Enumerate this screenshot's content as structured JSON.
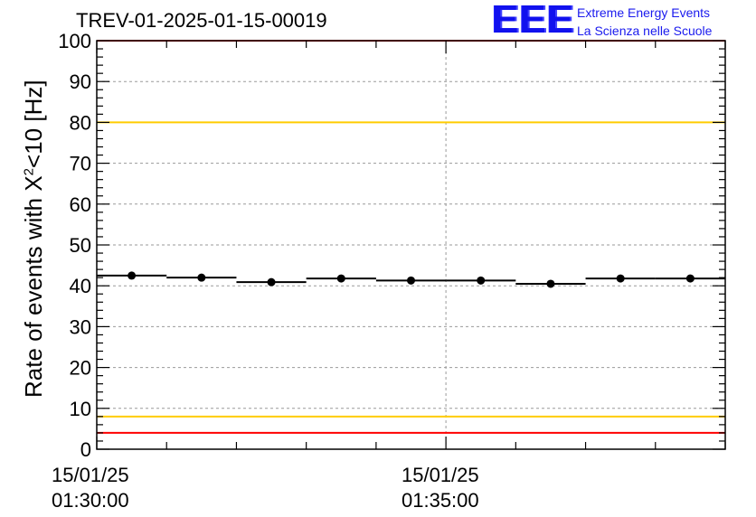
{
  "header": {
    "title": "TREV-01-2025-01-15-00019"
  },
  "logo": {
    "mark": "EEE",
    "line1": "Extreme Energy Events",
    "line2": "La Scienza nelle Scuole"
  },
  "chart_data": {
    "type": "scatter",
    "ylabel_prefix": "Rate of events with X",
    "ylabel_sup": "2",
    "ylabel_suffix": "<10 [Hz]",
    "ylim": [
      0,
      100
    ],
    "ytick_labels": [
      "0",
      "10",
      "20",
      "30",
      "40",
      "50",
      "60",
      "70",
      "80",
      "90",
      "100"
    ],
    "ytick_values": [
      0,
      10,
      20,
      30,
      40,
      50,
      60,
      70,
      80,
      90,
      100
    ],
    "xlim_minutes": [
      0,
      9
    ],
    "x_tick_labels": [
      {
        "minute": 0,
        "date": "15/01/25",
        "time": "01:30:00"
      },
      {
        "minute": 5,
        "date": "15/01/25",
        "time": "01:35:00"
      }
    ],
    "grid": true,
    "bins_minutes": [
      [
        0,
        1
      ],
      [
        1,
        2
      ],
      [
        2,
        3
      ],
      [
        3,
        4
      ],
      [
        4,
        5
      ],
      [
        5,
        6
      ],
      [
        6,
        7
      ],
      [
        7,
        8
      ],
      [
        8,
        9
      ]
    ],
    "values": [
      42.5,
      42.0,
      40.9,
      41.8,
      41.3,
      41.3,
      40.5,
      41.8,
      41.8
    ],
    "reference_lines": [
      {
        "value": 100,
        "color": "#ff0000"
      },
      {
        "value": 80,
        "color": "#ffcc00"
      },
      {
        "value": 8,
        "color": "#ffcc00"
      },
      {
        "value": 4,
        "color": "#ff0000"
      }
    ]
  }
}
